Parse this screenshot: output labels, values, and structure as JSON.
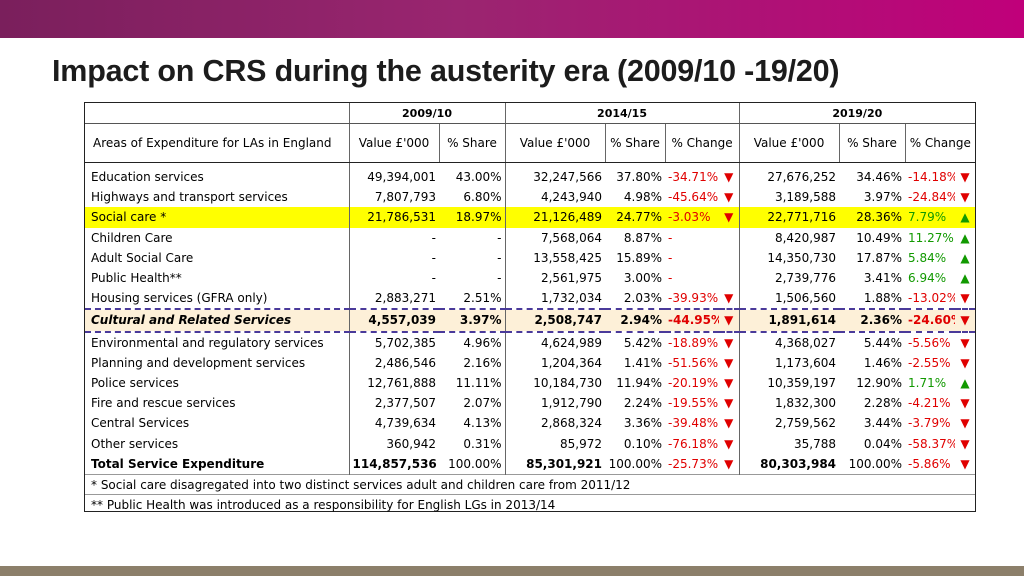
{
  "title": "Impact on CRS during the austerity era (2009/10 -19/20)",
  "periods": [
    "2009/10",
    "2014/15",
    "2019/20"
  ],
  "headers": {
    "area": "Areas of Expenditure for LAs in England",
    "value": "Value £'000",
    "share": "% Share",
    "change": "% Change"
  },
  "rows": [
    {
      "label": "Education services",
      "v1": "49,394,001",
      "s1": "43.00%",
      "v2": "32,247,566",
      "s2": "37.80%",
      "c2": "-34.71%",
      "a2": "▼",
      "v3": "27,676,252",
      "s3": "34.46%",
      "c3": "-14.18%",
      "a3": "▼"
    },
    {
      "label": "Highways and transport services",
      "v1": "7,807,793",
      "s1": "6.80%",
      "v2": "4,243,940",
      "s2": "4.98%",
      "c2": "-45.64%",
      "a2": "▼",
      "v3": "3,189,588",
      "s3": "3.97%",
      "c3": "-24.84%",
      "a3": "▼"
    },
    {
      "label": "Social care *",
      "v1": "21,786,531",
      "s1": "18.97%",
      "v2": "21,126,489",
      "s2": "24.77%",
      "c2": "-3.03%",
      "a2": "▼",
      "v3": "22,771,716",
      "s3": "28.36%",
      "c3": "7.79%",
      "a3": "▲"
    },
    {
      "label": "Children Care",
      "v1": "-",
      "s1": "-",
      "v2": "7,568,064",
      "s2": "8.87%",
      "c2": "-",
      "a2": "",
      "v3": "8,420,987",
      "s3": "10.49%",
      "c3": "11.27%",
      "a3": "▲"
    },
    {
      "label": "Adult Social Care",
      "v1": "-",
      "s1": "-",
      "v2": "13,558,425",
      "s2": "15.89%",
      "c2": "-",
      "a2": "",
      "v3": "14,350,730",
      "s3": "17.87%",
      "c3": "5.84%",
      "a3": "▲"
    },
    {
      "label": "Public Health**",
      "v1": "-",
      "s1": "-",
      "v2": "2,561,975",
      "s2": "3.00%",
      "c2": "-",
      "a2": "",
      "v3": "2,739,776",
      "s3": "3.41%",
      "c3": "6.94%",
      "a3": "▲"
    },
    {
      "label": "Housing services (GFRA only)",
      "v1": "2,883,271",
      "s1": "2.51%",
      "v2": "1,732,034",
      "s2": "2.03%",
      "c2": "-39.93%",
      "a2": "▼",
      "v3": "1,506,560",
      "s3": "1.88%",
      "c3": "-13.02%",
      "a3": "▼"
    },
    {
      "label": "Cultural and Related Services",
      "v1": "4,557,039",
      "s1": "3.97%",
      "v2": "2,508,747",
      "s2": "2.94%",
      "c2": "-44.95%",
      "a2": "▼",
      "v3": "1,891,614",
      "s3": "2.36%",
      "c3": "-24.60%",
      "a3": "▼"
    },
    {
      "label": "Environmental and regulatory services",
      "v1": "5,702,385",
      "s1": "4.96%",
      "v2": "4,624,989",
      "s2": "5.42%",
      "c2": "-18.89%",
      "a2": "▼",
      "v3": "4,368,027",
      "s3": "5.44%",
      "c3": "-5.56%",
      "a3": "▼"
    },
    {
      "label": "Planning and development services",
      "v1": "2,486,546",
      "s1": "2.16%",
      "v2": "1,204,364",
      "s2": "1.41%",
      "c2": "-51.56%",
      "a2": "▼",
      "v3": "1,173,604",
      "s3": "1.46%",
      "c3": "-2.55%",
      "a3": "▼"
    },
    {
      "label": "Police services",
      "v1": "12,761,888",
      "s1": "11.11%",
      "v2": "10,184,730",
      "s2": "11.94%",
      "c2": "-20.19%",
      "a2": "▼",
      "v3": "10,359,197",
      "s3": "12.90%",
      "c3": "1.71%",
      "a3": "▲"
    },
    {
      "label": "Fire and rescue services",
      "v1": "2,377,507",
      "s1": "2.07%",
      "v2": "1,912,790",
      "s2": "2.24%",
      "c2": "-19.55%",
      "a2": "▼",
      "v3": "1,832,300",
      "s3": "2.28%",
      "c3": "-4.21%",
      "a3": "▼"
    },
    {
      "label": "Central Services",
      "v1": "4,739,634",
      "s1": "4.13%",
      "v2": "2,868,324",
      "s2": "3.36%",
      "c2": "-39.48%",
      "a2": "▼",
      "v3": "2,759,562",
      "s3": "3.44%",
      "c3": "-3.79%",
      "a3": "▼"
    },
    {
      "label": "Other services",
      "v1": "360,942",
      "s1": "0.31%",
      "v2": "85,972",
      "s2": "0.10%",
      "c2": "-76.18%",
      "a2": "▼",
      "v3": "35,788",
      "s3": "0.04%",
      "c3": "-58.37%",
      "a3": "▼"
    },
    {
      "label": "Total Service Expenditure",
      "v1": "114,857,536",
      "s1": "100.00%",
      "v2": "85,301,921",
      "s2": "100.00%",
      "c2": "-25.73%",
      "a2": "▼",
      "v3": "80,303,984",
      "s3": "100.00%",
      "c3": "-5.86%",
      "a3": "▼"
    }
  ],
  "notes": [
    "* Social care disagregated into two distinct services adult and children care from 2011/12",
    "** Public Health was introduced as a responsibility for English LGs in 2013/14"
  ],
  "colors": {
    "negative": "#e00000",
    "positive": "#119900",
    "highlight": "#ffff00",
    "culture_highlight": "#fdf0d8",
    "banner": "#9a2570"
  }
}
